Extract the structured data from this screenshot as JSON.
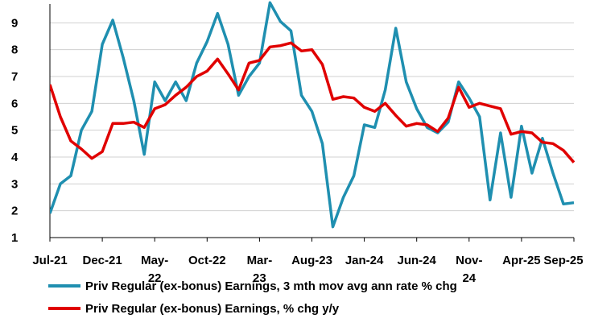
{
  "chart_data": {
    "type": "line",
    "title": "",
    "xlabel": "",
    "ylabel": "",
    "ylim": [
      1,
      9.7
    ],
    "yticks": [
      1,
      2,
      3,
      4,
      5,
      6,
      7,
      8,
      9
    ],
    "grid": true,
    "legend_position": "bottom",
    "x_tick_labels": [
      {
        "index": 0,
        "lines": [
          "Jul-21"
        ]
      },
      {
        "index": 5,
        "lines": [
          "Dec-21"
        ]
      },
      {
        "index": 10,
        "lines": [
          "May-",
          "22"
        ]
      },
      {
        "index": 15,
        "lines": [
          "Oct-22"
        ]
      },
      {
        "index": 20,
        "lines": [
          "Mar-",
          "23"
        ]
      },
      {
        "index": 25,
        "lines": [
          "Aug-23"
        ]
      },
      {
        "index": 30,
        "lines": [
          "Jan-24"
        ]
      },
      {
        "index": 35,
        "lines": [
          "Jun-24"
        ]
      },
      {
        "index": 40,
        "lines": [
          "Nov-",
          "24"
        ]
      },
      {
        "index": 45,
        "lines": [
          "Apr-25"
        ]
      },
      {
        "index": 50,
        "lines": [
          "Sep-25"
        ]
      }
    ],
    "x_start": "Jul-21",
    "x_end": "Sep-25",
    "series": [
      {
        "name": "Priv Regular (ex-bonus) Earnings, 3 mth mov avg ann rate % chg",
        "color": "#1f8fb0",
        "values": [
          1.9,
          3.0,
          3.3,
          5.0,
          5.7,
          8.2,
          9.1,
          7.7,
          6.1,
          4.1,
          6.8,
          6.1,
          6.8,
          6.1,
          7.5,
          8.3,
          9.35,
          8.2,
          6.3,
          7.0,
          7.5,
          9.75,
          9.05,
          8.7,
          6.3,
          5.7,
          4.5,
          1.4,
          2.5,
          3.3,
          5.2,
          5.1,
          6.5,
          8.8,
          6.8,
          5.8,
          5.1,
          4.9,
          5.3,
          6.8,
          6.2,
          5.5,
          2.4,
          4.9,
          2.5,
          5.15,
          3.4,
          4.7,
          3.4,
          2.25,
          2.3
        ]
      },
      {
        "name": "Priv Regular (ex-bonus) Earnings, % chg y/y",
        "color": "#e00000",
        "values": [
          6.7,
          5.5,
          4.6,
          4.3,
          3.95,
          4.2,
          5.25,
          5.25,
          5.3,
          5.1,
          5.8,
          5.95,
          6.3,
          6.6,
          7.0,
          7.2,
          7.65,
          7.1,
          6.5,
          7.5,
          7.6,
          8.1,
          8.15,
          8.25,
          7.95,
          8.0,
          7.45,
          6.15,
          6.25,
          6.2,
          5.85,
          5.7,
          6.0,
          5.55,
          5.15,
          5.25,
          5.2,
          4.95,
          5.45,
          6.6,
          5.85,
          6.0,
          5.9,
          5.8,
          4.85,
          4.95,
          4.9,
          4.55,
          4.5,
          4.25,
          3.8
        ]
      }
    ]
  }
}
